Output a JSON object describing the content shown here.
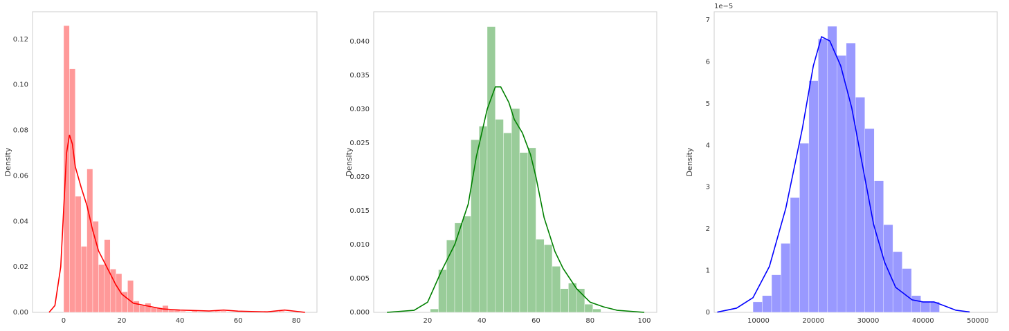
{
  "chart_data": [
    {
      "type": "histogram",
      "ylabel": "Density",
      "bins": [
        0,
        2,
        4,
        6,
        8,
        10,
        12,
        14,
        16,
        18,
        20,
        22,
        24,
        26,
        28,
        30,
        32,
        34,
        36,
        38,
        40,
        42,
        44,
        46,
        48,
        50,
        52,
        54,
        56,
        58,
        60,
        62,
        64,
        66,
        68,
        70,
        72,
        74,
        76,
        78
      ],
      "values": [
        0.126,
        0.107,
        0.051,
        0.029,
        0.063,
        0.04,
        0.021,
        0.032,
        0.019,
        0.017,
        0.009,
        0.014,
        0.005,
        0.003,
        0.004,
        0.002,
        0.002,
        0.003,
        0.001,
        0.001,
        0.0005,
        0,
        0.0005,
        0,
        0,
        0,
        0.0005,
        0.0005,
        0,
        0,
        0,
        0,
        0,
        0,
        0,
        0,
        0,
        0.0005,
        0
      ],
      "color": "#ff9999",
      "kde": {
        "x": [
          -5,
          -3,
          -1,
          0,
          1,
          2,
          3,
          4,
          6,
          8,
          10,
          12,
          14,
          16,
          18,
          20,
          24,
          28,
          34,
          40,
          50,
          55,
          60,
          70,
          76,
          83
        ],
        "values": [
          0,
          0.003,
          0.02,
          0.045,
          0.07,
          0.078,
          0.074,
          0.064,
          0.055,
          0.047,
          0.036,
          0.027,
          0.022,
          0.017,
          0.012,
          0.008,
          0.004,
          0.003,
          0.0015,
          0.001,
          0.0006,
          0.001,
          0.0005,
          0.0002,
          0.001,
          0
        ],
        "color": "red"
      },
      "xlim": [
        -10.7,
        87.1
      ],
      "ylim": [
        0,
        0.1321
      ],
      "xticks": [
        0,
        20,
        40,
        60,
        80
      ],
      "yticks": [
        {
          "value": 0,
          "label": "0.00"
        },
        {
          "value": 0.02,
          "label": "0.02"
        },
        {
          "value": 0.04,
          "label": "0.04"
        },
        {
          "value": 0.06,
          "label": "0.06"
        },
        {
          "value": 0.08,
          "label": "0.08"
        },
        {
          "value": 0.1,
          "label": "0.10"
        },
        {
          "value": 0.12,
          "label": "0.12"
        }
      ],
      "grid": false
    },
    {
      "type": "histogram",
      "ylabel": "Density",
      "bins": [
        21,
        24,
        27,
        30,
        33,
        36,
        39,
        42,
        45,
        48,
        51,
        54,
        57,
        60,
        63,
        66,
        69,
        72,
        75,
        78,
        81,
        84
      ],
      "values": [
        0.0005,
        0.0063,
        0.0107,
        0.0132,
        0.0142,
        0.0255,
        0.0275,
        0.0422,
        0.0285,
        0.0265,
        0.0301,
        0.0236,
        0.0243,
        0.0108,
        0.01,
        0.0068,
        0.0035,
        0.0043,
        0.0035,
        0.0012,
        0.0005
      ],
      "color": "#99cc99",
      "kde": {
        "x": [
          5,
          15,
          20,
          25,
          30,
          35,
          38,
          42,
          45,
          47,
          50,
          52,
          55,
          58,
          60,
          63,
          67,
          70,
          75,
          80,
          85,
          90,
          100
        ],
        "values": [
          0,
          0.0003,
          0.0015,
          0.006,
          0.01,
          0.016,
          0.023,
          0.03,
          0.0333,
          0.0333,
          0.031,
          0.0285,
          0.0265,
          0.0233,
          0.02,
          0.014,
          0.009,
          0.0065,
          0.0035,
          0.0015,
          0.0008,
          0.0003,
          0
        ],
        "color": "green"
      },
      "xlim": [
        0.1,
        104.6
      ],
      "ylim": [
        0,
        0.0444
      ],
      "xticks": [
        20,
        40,
        60,
        80,
        100
      ],
      "yticks": [
        {
          "value": 0,
          "label": "0.000"
        },
        {
          "value": 0.005,
          "label": "0.005"
        },
        {
          "value": 0.01,
          "label": "0.010"
        },
        {
          "value": 0.015,
          "label": "0.015"
        },
        {
          "value": 0.02,
          "label": "0.020"
        },
        {
          "value": 0.025,
          "label": "0.025"
        },
        {
          "value": 0.03,
          "label": "0.030"
        },
        {
          "value": 0.035,
          "label": "0.035"
        },
        {
          "value": 0.04,
          "label": "0.040"
        }
      ],
      "grid": false
    },
    {
      "type": "histogram",
      "ylabel": "Density",
      "offset_text": "1e−5",
      "bins": [
        9000,
        10700,
        12400,
        14100,
        15800,
        17500,
        19200,
        20900,
        22600,
        24300,
        26000,
        27700,
        29400,
        31100,
        32800,
        34500,
        36200,
        37900,
        39600,
        41300,
        43000
      ],
      "values": [
        0.25,
        0.4,
        0.9,
        1.65,
        2.75,
        4.05,
        5.55,
        6.55,
        6.85,
        6.15,
        6.45,
        5.15,
        4.4,
        3.15,
        2.1,
        1.45,
        1.05,
        0.4,
        0.25,
        0.25
      ],
      "color": "#9999ff",
      "kde": {
        "x": [
          2500,
          6000,
          9000,
          12000,
          15000,
          18000,
          20000,
          21500,
          23000,
          25000,
          27000,
          29000,
          31000,
          33000,
          35000,
          38000,
          40000,
          42000,
          44000,
          46000,
          48500
        ],
        "values": [
          0.005,
          0.1,
          0.35,
          1.1,
          2.5,
          4.4,
          5.9,
          6.6,
          6.5,
          5.9,
          4.9,
          3.5,
          2.1,
          1.2,
          0.6,
          0.3,
          0.25,
          0.25,
          0.15,
          0.05,
          0.01
        ],
        "color": "blue"
      },
      "xlim": [
        1930,
        53530
      ],
      "ylim": [
        0,
        7.198
      ],
      "xticks": [
        10000,
        20000,
        30000,
        40000,
        50000
      ],
      "yticks": [
        0,
        1,
        2,
        3,
        4,
        5,
        6,
        7
      ],
      "grid": false
    }
  ]
}
